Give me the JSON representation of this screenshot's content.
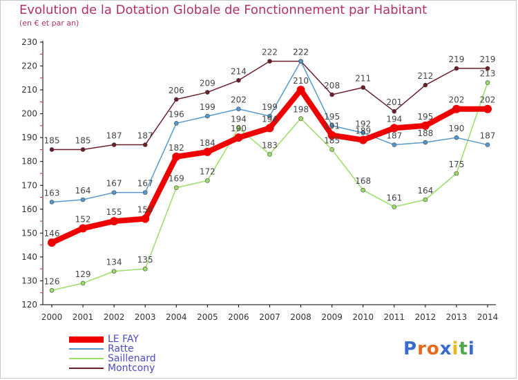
{
  "chart_data": {
    "type": "line",
    "title": "Evolution de la Dotation Globale de Fonctionnement par Habitant",
    "subtitle": "(en € et par an)",
    "x": [
      "2000",
      "2001",
      "2002",
      "2003",
      "2004",
      "2005",
      "2006",
      "2007",
      "2008",
      "2009",
      "2010",
      "2011",
      "2012",
      "2013",
      "2014"
    ],
    "ylim": [
      120,
      230
    ],
    "yticks": [
      120,
      130,
      140,
      150,
      160,
      170,
      180,
      190,
      200,
      210,
      220,
      230
    ],
    "grid": false,
    "legend_position": "bottom-left",
    "series": [
      {
        "name": "Montcony",
        "color": "#6b1e28",
        "width": 1.5,
        "values": [
          185,
          185,
          187,
          187,
          206,
          209,
          214,
          222,
          222,
          208,
          211,
          201,
          212,
          219,
          219
        ]
      },
      {
        "name": "Saillenard",
        "color": "#99dd66",
        "width": 1.5,
        "values": [
          126,
          129,
          134,
          135,
          169,
          172,
          194,
          183,
          198,
          185,
          168,
          161,
          164,
          175,
          213
        ]
      },
      {
        "name": "Ratte",
        "color": "#5599cc",
        "width": 1.5,
        "values": [
          163,
          164,
          167,
          167,
          196,
          199,
          202,
          199,
          222,
          195,
          192,
          187,
          188,
          190,
          187
        ]
      },
      {
        "name": "LE FAY",
        "color": "#ee0000",
        "width": 8,
        "values": [
          146,
          152,
          155,
          156,
          182,
          184,
          190,
          194,
          210,
          191,
          189,
          194,
          195,
          202,
          202
        ]
      }
    ],
    "legend_order": [
      "LE FAY",
      "Ratte",
      "Saillenard",
      "Montcony"
    ]
  },
  "brand": {
    "text": "Proxiti",
    "letters": [
      "P",
      "r",
      "o",
      "x",
      "i",
      "t",
      "i"
    ],
    "colors": [
      "#3a6ccc",
      "#e86a1a",
      "#e86a1a",
      "#3a6ccc",
      "#e8b818",
      "#4aa84a",
      "#3a6ccc"
    ]
  }
}
